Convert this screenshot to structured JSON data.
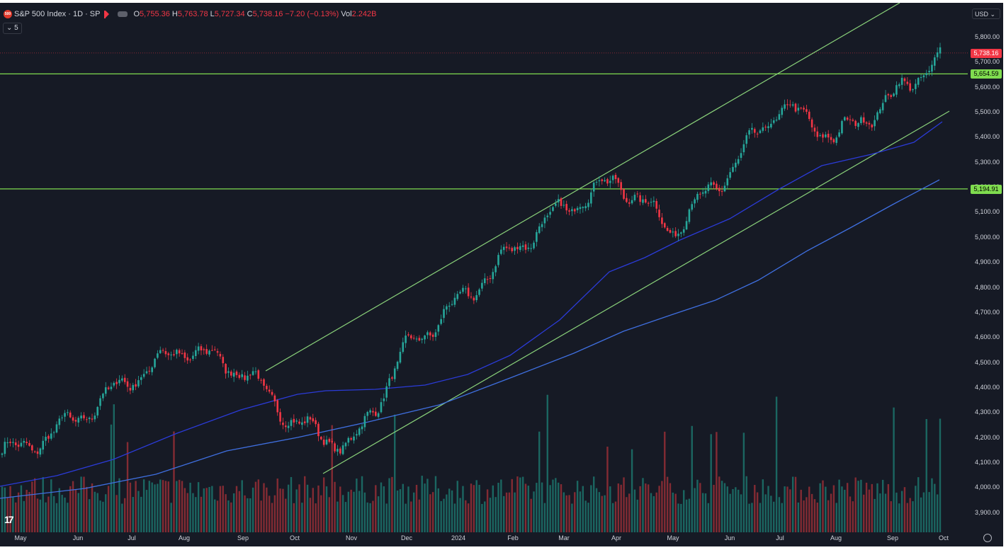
{
  "header": {
    "logo_text": "500",
    "symbol": "S&P 500 Index · 1D · SP",
    "ohlc": [
      {
        "k": "O",
        "v": "5,755.36"
      },
      {
        "k": "H",
        "v": "5,763.78"
      },
      {
        "k": "L",
        "v": "5,727.34"
      },
      {
        "k": "C",
        "v": "5,738.16 −7.20 (−0.13%)"
      }
    ],
    "vol_label": "Vol",
    "vol_value": "2.242B",
    "collapse_label": "⌄ 5"
  },
  "currency": "USD ⌄",
  "price_axis": {
    "ticks": [
      "5,800.00",
      "5,700.00",
      "5,600.00",
      "5,500.00",
      "5,400.00",
      "5,300.00",
      "5,200.00",
      "5,100.00",
      "5,000.00",
      "4,900.00",
      "4,800.00",
      "4,700.00",
      "4,600.00",
      "4,500.00",
      "4,400.00",
      "4,300.00",
      "4,200.00",
      "4,100.00",
      "4,000.00",
      "3,900.00"
    ]
  },
  "badges": {
    "last_price": "5,738.16",
    "resistance": "5,654.59",
    "support": "5,194.91"
  },
  "time_axis": [
    "May",
    "Jun",
    "Jul",
    "Aug",
    "Sep",
    "Oct",
    "Nov",
    "Dec",
    "2024",
    "Feb",
    "Mar",
    "Apr",
    "May",
    "Jun",
    "Jul",
    "Aug",
    "Sep",
    "Oct"
  ],
  "colors": {
    "up": "#26a69a",
    "down": "#f23645",
    "horiz_line": "#7fdc4f",
    "trend": "#8ad27a",
    "ma": "#2b3bd8",
    "ma2": "#3f6fe0",
    "bg": "#161a25"
  },
  "chart_data": {
    "type": "candlestick",
    "ylim": [
      3850,
      5850
    ],
    "anchors": [
      {
        "d": "May",
        "p": 4150
      },
      {
        "d": "Jun",
        "p": 4280
      },
      {
        "d": "Jul",
        "p": 4440
      },
      {
        "d": "Aug",
        "p": 4560
      },
      {
        "d": "Sep",
        "p": 4470
      },
      {
        "d": "Oct",
        "p": 4260
      },
      {
        "d": "Nov",
        "p": 4160
      },
      {
        "d": "Dec",
        "p": 4560
      },
      {
        "d": "2024",
        "p": 4740
      },
      {
        "d": "Feb",
        "p": 4950
      },
      {
        "d": "Mar",
        "p": 5120
      },
      {
        "d": "Apr",
        "p": 5230
      },
      {
        "d": "May",
        "p": 5030
      },
      {
        "d": "Jun",
        "p": 5270
      },
      {
        "d": "Jul",
        "p": 5530
      },
      {
        "d": "Aug",
        "p": 5400
      },
      {
        "d": "Sep",
        "p": 5560
      },
      {
        "d": "Oct",
        "p": 5740
      }
    ],
    "horizontal_levels": [
      5654.59,
      5194.91
    ],
    "last": 5738.16
  }
}
